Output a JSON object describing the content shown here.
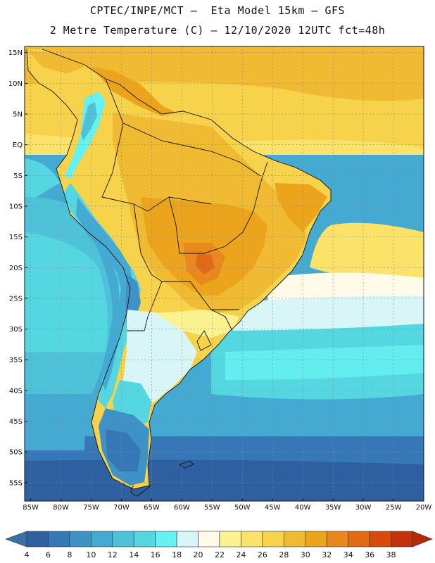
{
  "header": {
    "line1": "CPTEC/INPE/MCT –  Eta Model 15km – GFS",
    "line2": "2 Metre Temperature (C) – 12/10/2020 12UTC fct=48h"
  },
  "map": {
    "lon_range": [
      -86,
      -20
    ],
    "lat_range": [
      -58,
      16
    ],
    "lat_ticks": [
      {
        "value": 15,
        "label": "15N"
      },
      {
        "value": 10,
        "label": "10N"
      },
      {
        "value": 5,
        "label": "5N"
      },
      {
        "value": 0,
        "label": "EQ"
      },
      {
        "value": -5,
        "label": "5S"
      },
      {
        "value": -10,
        "label": "10S"
      },
      {
        "value": -15,
        "label": "15S"
      },
      {
        "value": -20,
        "label": "20S"
      },
      {
        "value": -25,
        "label": "25S"
      },
      {
        "value": -30,
        "label": "30S"
      },
      {
        "value": -35,
        "label": "35S"
      },
      {
        "value": -40,
        "label": "40S"
      },
      {
        "value": -45,
        "label": "45S"
      },
      {
        "value": -50,
        "label": "50S"
      },
      {
        "value": -55,
        "label": "55S"
      }
    ],
    "lon_ticks": [
      {
        "value": -85,
        "label": "85W"
      },
      {
        "value": -80,
        "label": "80W"
      },
      {
        "value": -75,
        "label": "75W"
      },
      {
        "value": -70,
        "label": "70W"
      },
      {
        "value": -65,
        "label": "65W"
      },
      {
        "value": -60,
        "label": "60W"
      },
      {
        "value": -55,
        "label": "55W"
      },
      {
        "value": -50,
        "label": "50W"
      },
      {
        "value": -45,
        "label": "45W"
      },
      {
        "value": -40,
        "label": "40W"
      },
      {
        "value": -35,
        "label": "35W"
      },
      {
        "value": -30,
        "label": "30W"
      },
      {
        "value": -25,
        "label": "25W"
      },
      {
        "value": -20,
        "label": "20W"
      }
    ]
  },
  "colorbar": {
    "labels": [
      "4",
      "6",
      "8",
      "10",
      "12",
      "14",
      "16",
      "18",
      "20",
      "22",
      "24",
      "26",
      "28",
      "30",
      "32",
      "34",
      "36",
      "38"
    ],
    "colors": [
      "#2e5fa0",
      "#3677b7",
      "#3f92c6",
      "#45aad2",
      "#4dc2d9",
      "#55d7e2",
      "#66f2f2",
      "#d8f6f8",
      "#fffbe8",
      "#fdf290",
      "#fbe36b",
      "#f7d24b",
      "#f0bb32",
      "#eca41c",
      "#e7891d",
      "#e16b14",
      "#d84b0c",
      "#c3320a"
    ]
  }
}
